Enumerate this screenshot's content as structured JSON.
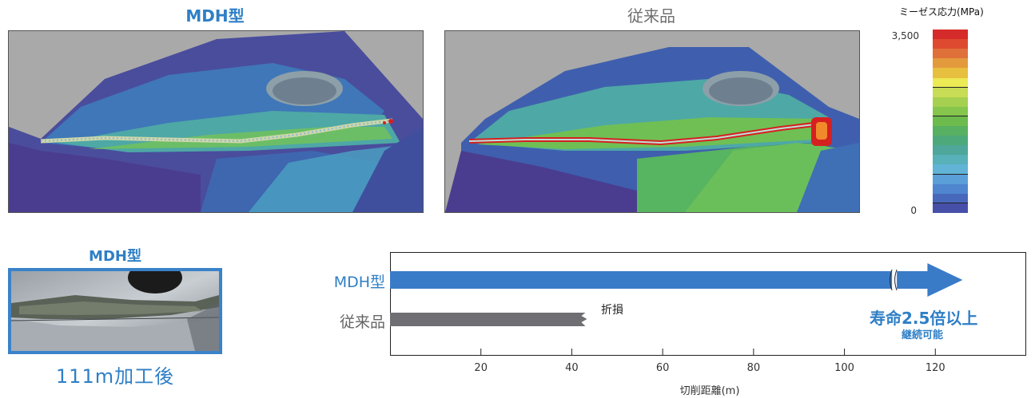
{
  "simulation": {
    "left_title": "MDH型",
    "right_title": "従来品",
    "scale": {
      "title": "ミーゼス応力(MPa)",
      "max_label": "3,500",
      "min_label": "0",
      "max_value": 3500,
      "min_value": 0,
      "colors": [
        "#d62b2b",
        "#de4a30",
        "#e0703a",
        "#e39a3c",
        "#e6c03e",
        "#ecea55",
        "#c8dc55",
        "#a5d050",
        "#86c64c",
        "#6dba4d",
        "#58b062",
        "#4ea97a",
        "#4ea79a",
        "#58b0b8",
        "#61b4d6",
        "#5a9fd8",
        "#4f86cf",
        "#4868bc",
        "#4750a8"
      ]
    },
    "colors": {
      "bg_gray": "#a9a9a9",
      "dark_purple": "#4a3d8f",
      "blue": "#3b6cb8",
      "teal": "#4aa6a6",
      "green": "#6fbf55",
      "red": "#d62020"
    }
  },
  "photo": {
    "title": "MDH型",
    "caption": "111m加工後"
  },
  "chart_data": {
    "type": "bar",
    "orientation": "horizontal",
    "categories": [
      "MDH型",
      "従来品"
    ],
    "values": [
      126,
      43
    ],
    "colors": [
      "#3a7bc8",
      "#6e6e73"
    ],
    "xlabel": "切削距離(m)",
    "ylabel": "",
    "xlim": [
      0,
      140
    ],
    "xticks": [
      20,
      40,
      60,
      80,
      100,
      120
    ],
    "annotations": {
      "break_label": "折損",
      "life_main": "寿命2.5倍以上",
      "life_sub": "継続可能"
    }
  }
}
